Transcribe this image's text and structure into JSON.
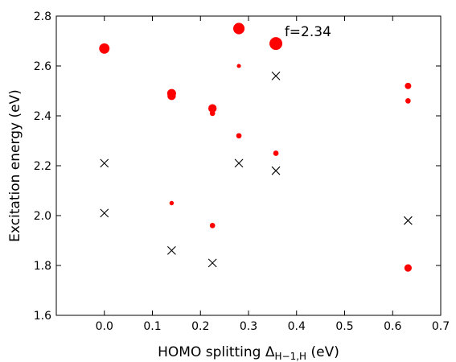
{
  "chart_data": {
    "type": "scatter",
    "title": "",
    "xlabel_prefix": "HOMO splitting Δ",
    "xlabel_sub": "H−1,H",
    "xlabel_suffix": " (eV)",
    "ylabel": "Excitation energy (eV)",
    "xlim": [
      -0.1,
      0.7
    ],
    "ylim": [
      1.6,
      2.8
    ],
    "x_ticks": [
      0.0,
      0.1,
      0.2,
      0.3,
      0.4,
      0.5,
      0.6,
      0.7
    ],
    "x_tick_labels": [
      "0.0",
      "0.1",
      "0.2",
      "0.3",
      "0.4",
      "0.5",
      "0.6",
      "0.7"
    ],
    "y_ticks": [
      1.6,
      1.8,
      2.0,
      2.2,
      2.4,
      2.6,
      2.8
    ],
    "y_tick_labels": [
      "1.6",
      "1.8",
      "2.0",
      "2.2",
      "2.4",
      "2.6",
      "2.8"
    ],
    "grid": false,
    "series": [
      {
        "marker": "circle",
        "color": "#ff0000",
        "points": [
          {
            "x": 0.0,
            "y": 2.67,
            "size": 0.75
          },
          {
            "x": 0.14,
            "y": 2.49,
            "size": 0.6
          },
          {
            "x": 0.14,
            "y": 2.48,
            "size": 0.55
          },
          {
            "x": 0.14,
            "y": 2.05,
            "size": 0.15
          },
          {
            "x": 0.225,
            "y": 2.43,
            "size": 0.55
          },
          {
            "x": 0.225,
            "y": 2.41,
            "size": 0.25
          },
          {
            "x": 0.225,
            "y": 1.96,
            "size": 0.25
          },
          {
            "x": 0.28,
            "y": 2.75,
            "size": 0.85
          },
          {
            "x": 0.28,
            "y": 2.6,
            "size": 0.12
          },
          {
            "x": 0.28,
            "y": 2.32,
            "size": 0.25
          },
          {
            "x": 0.357,
            "y": 2.69,
            "size": 1.0
          },
          {
            "x": 0.357,
            "y": 2.25,
            "size": 0.25
          },
          {
            "x": 0.632,
            "y": 2.52,
            "size": 0.35
          },
          {
            "x": 0.632,
            "y": 2.46,
            "size": 0.25
          },
          {
            "x": 0.632,
            "y": 1.79,
            "size": 0.45
          }
        ]
      },
      {
        "marker": "x",
        "color": "#000000",
        "points": [
          {
            "x": 0.0,
            "y": 2.21
          },
          {
            "x": 0.0,
            "y": 2.01
          },
          {
            "x": 0.14,
            "y": 1.86
          },
          {
            "x": 0.225,
            "y": 1.81
          },
          {
            "x": 0.28,
            "y": 2.21
          },
          {
            "x": 0.357,
            "y": 2.56
          },
          {
            "x": 0.357,
            "y": 2.18
          },
          {
            "x": 0.632,
            "y": 1.98
          }
        ]
      }
    ],
    "annotations": [
      {
        "text": "f=2.34",
        "x": 0.375,
        "y": 2.72
      }
    ]
  }
}
